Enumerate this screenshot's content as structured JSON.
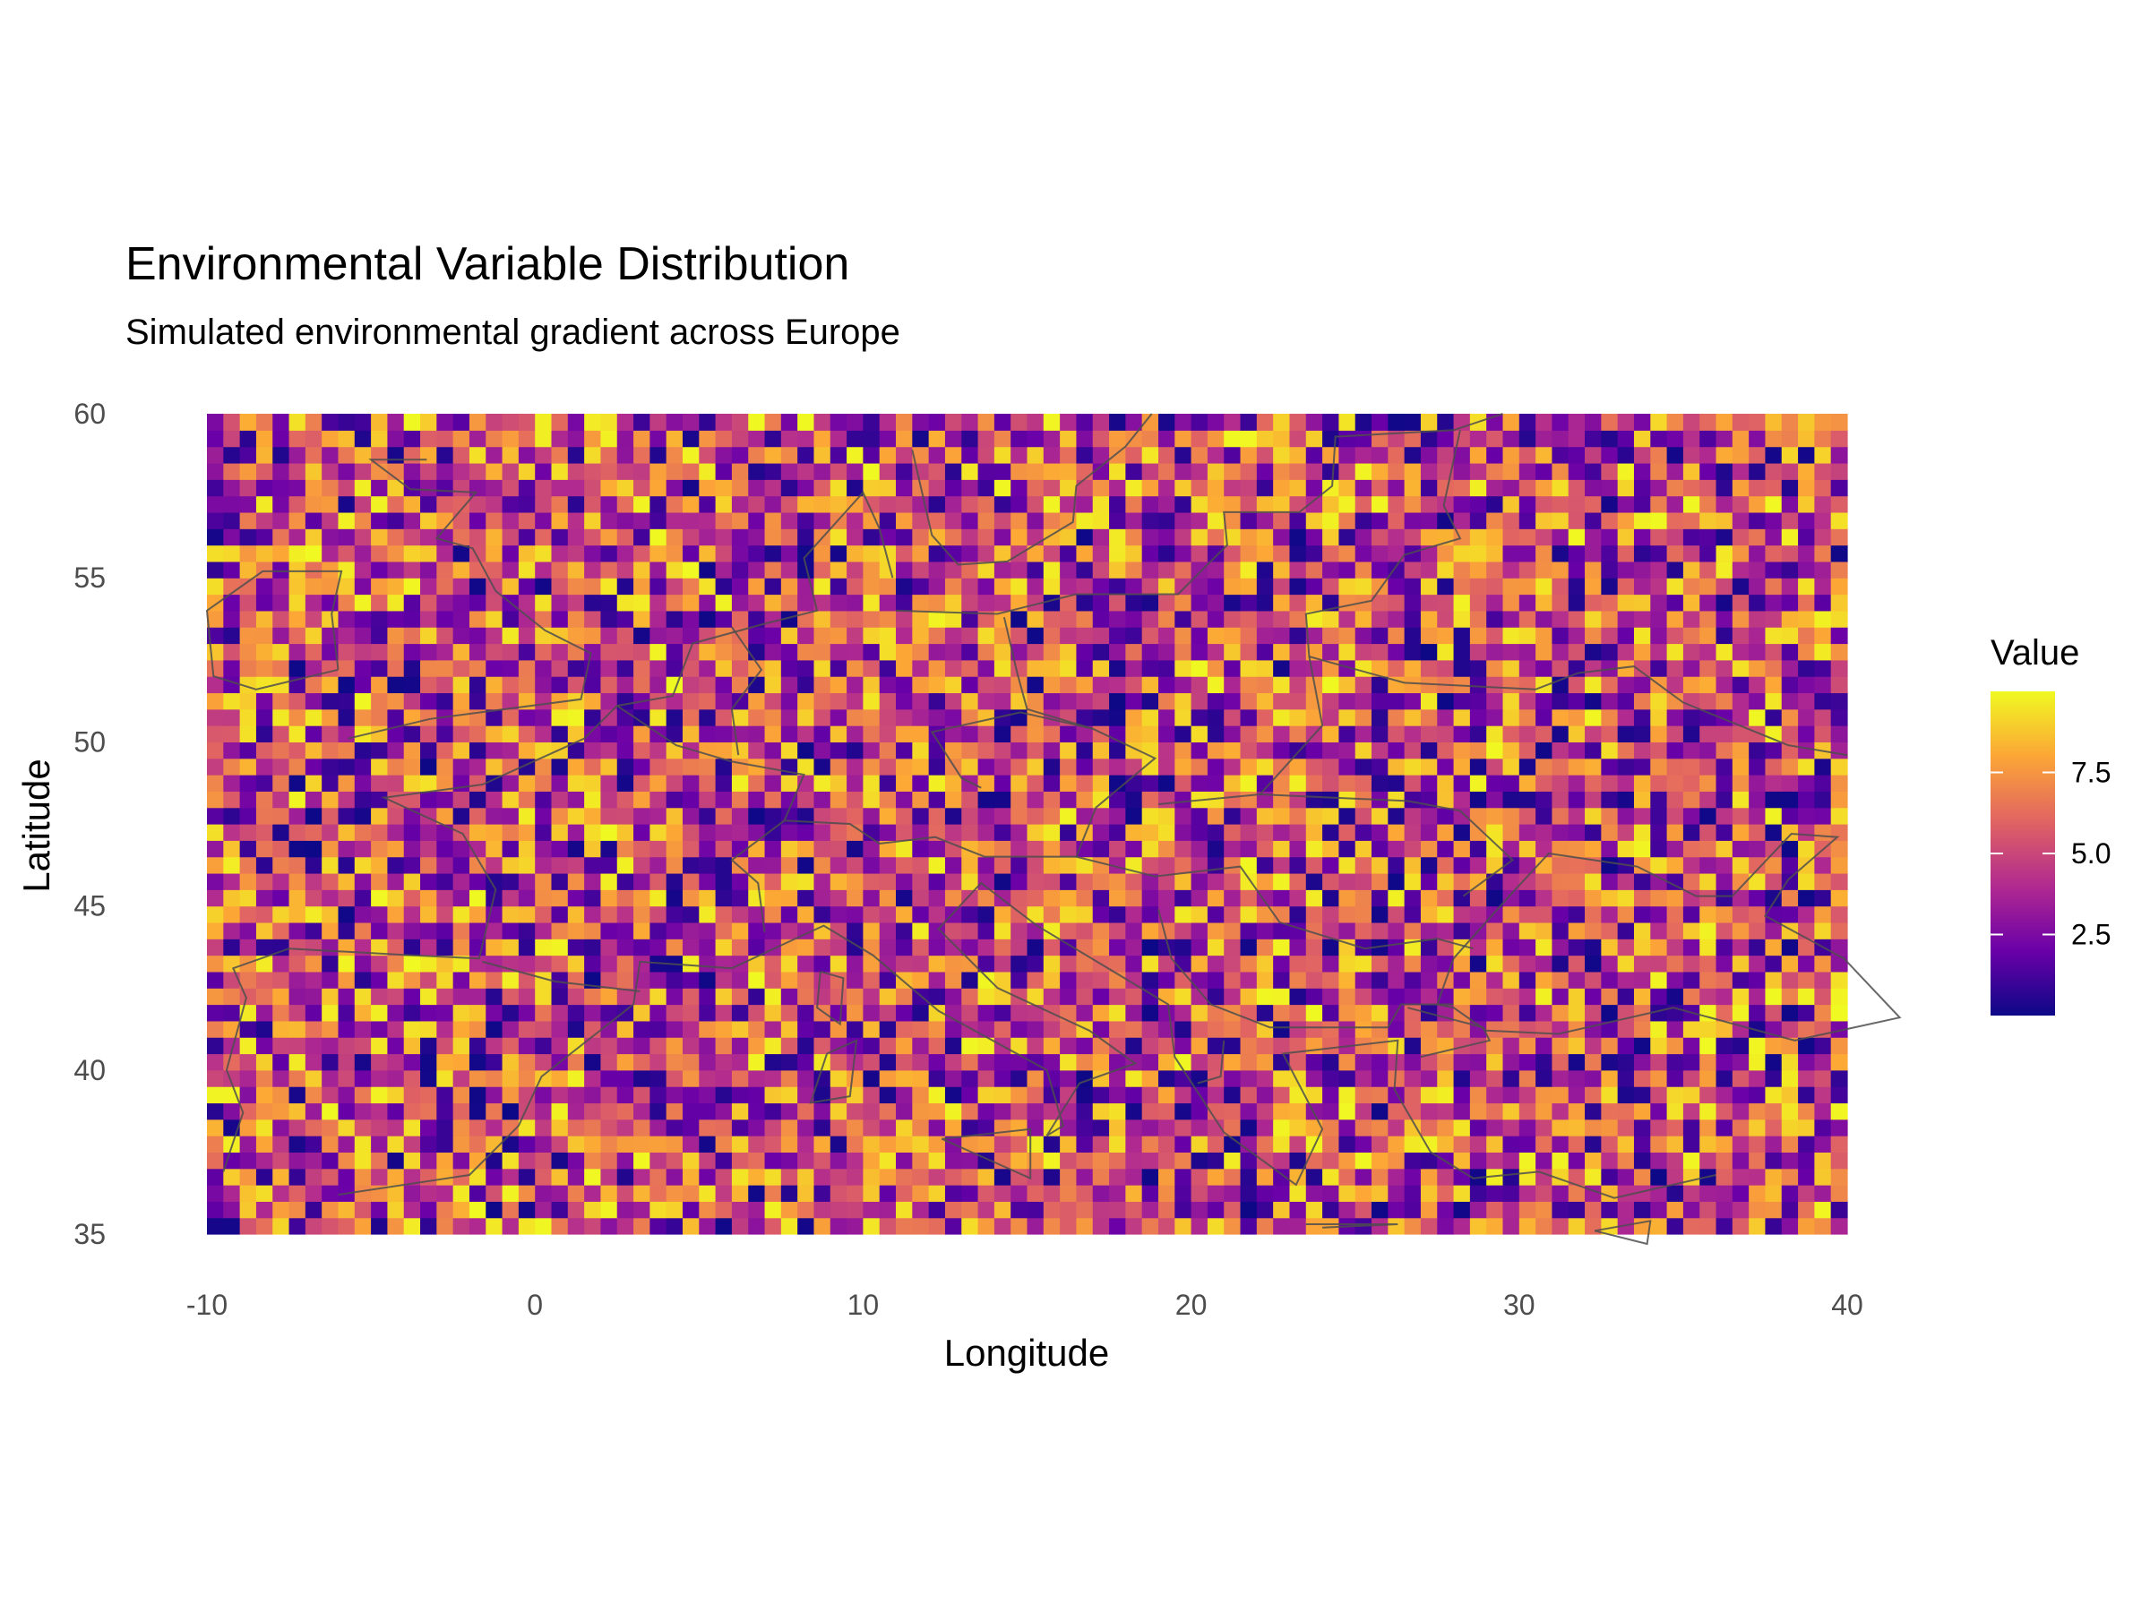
{
  "chart_data": {
    "type": "heatmap",
    "title": "Environmental Variable Distribution",
    "subtitle": "Simulated environmental gradient across Europe",
    "xlabel": "Longitude",
    "ylabel": "Latitude",
    "xlim": [
      -10,
      40
    ],
    "ylim": [
      35,
      60
    ],
    "x_ticks": [
      -10,
      0,
      10,
      20,
      30,
      40
    ],
    "x_tick_labels": [
      "-10",
      "0",
      "10",
      "20",
      "30",
      "40"
    ],
    "y_ticks": [
      35,
      40,
      45,
      50,
      55,
      60
    ],
    "y_tick_labels": [
      "35",
      "40",
      "45",
      "50",
      "55",
      "60"
    ],
    "grid": false,
    "legend": {
      "title": "Value",
      "placement": "right",
      "breaks": [
        2.5,
        5.0,
        7.5
      ],
      "break_labels": [
        "2.5",
        "5.0",
        "7.5"
      ],
      "range": [
        0,
        10
      ],
      "colormap": "plasma",
      "colors": [
        "#0d0887",
        "#6a00a8",
        "#b12a90",
        "#e16462",
        "#fca636",
        "#f0f921"
      ]
    },
    "grid_cells": {
      "lon_min": -10,
      "lon_max": 40,
      "lon_step": 0.5,
      "lat_min": 35,
      "lat_max": 60,
      "lat_step": 0.5,
      "value_range": [
        0,
        10
      ],
      "pattern": "random noise around uniform mean"
    },
    "overlay": "country borders / coastlines in grey"
  }
}
